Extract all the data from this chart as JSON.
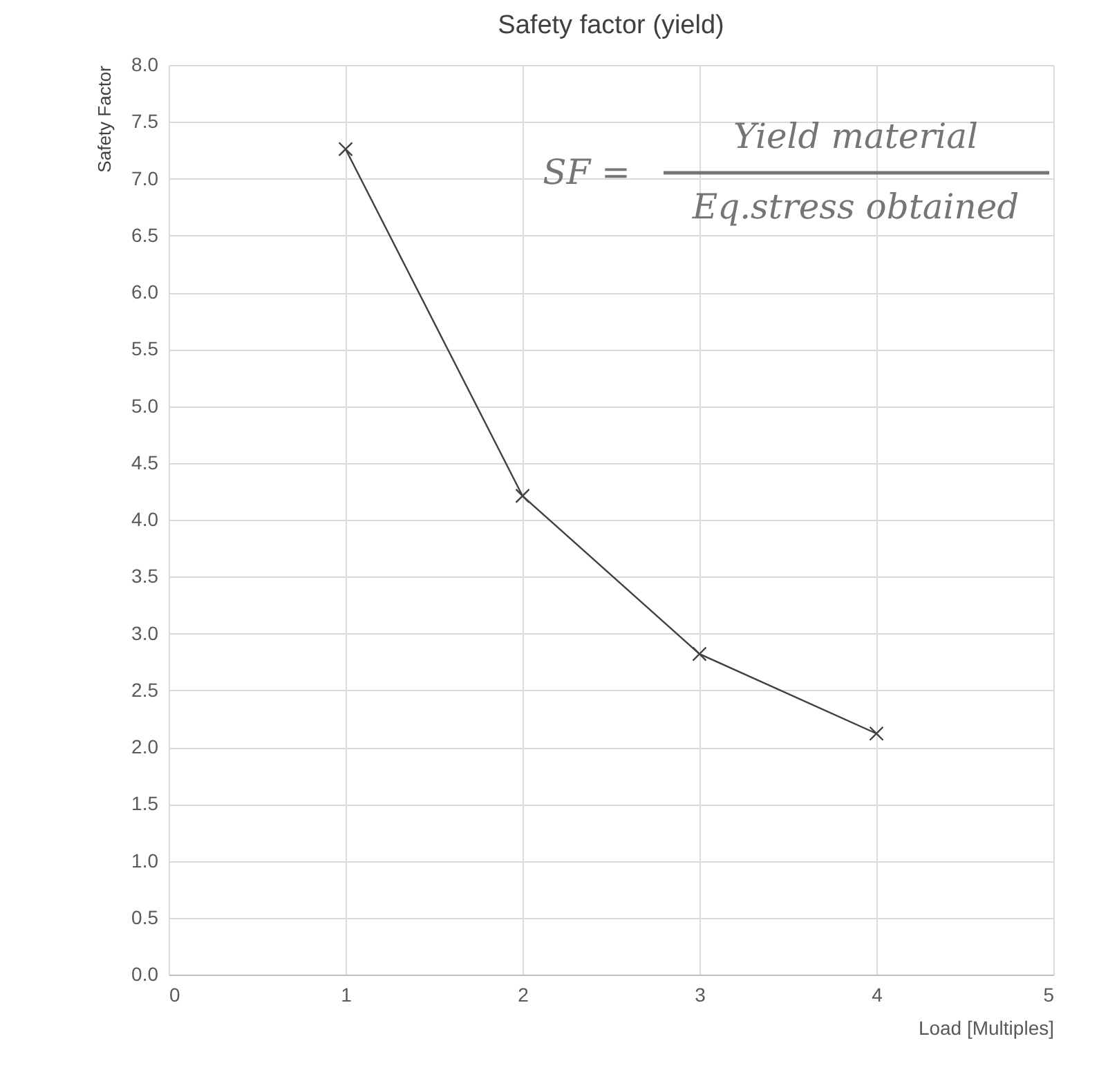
{
  "chart_data": {
    "type": "line",
    "title": "Safety factor (yield)",
    "xlabel": "Load [Multiples]",
    "ylabel": "Safety Factor",
    "x": [
      1,
      2,
      3,
      4
    ],
    "series": [
      {
        "color": "#404040",
        "values": [
          7.26,
          4.21,
          2.82,
          2.12
        ]
      }
    ],
    "xlim": [
      0,
      5
    ],
    "xticks": [
      0,
      1,
      2,
      3,
      4,
      5
    ],
    "ylim": [
      0,
      8
    ],
    "yticks": [
      {
        "value": 0,
        "label": "0.0"
      },
      {
        "value": 0.5,
        "label": "0.5"
      },
      {
        "value": 1,
        "label": "1.0"
      },
      {
        "value": 1.5,
        "label": "1.5"
      },
      {
        "value": 2,
        "label": "2.0"
      },
      {
        "value": 2.5,
        "label": "2.5"
      },
      {
        "value": 3,
        "label": "3.0"
      },
      {
        "value": 3.5,
        "label": "3.5"
      },
      {
        "value": 4,
        "label": "4.0"
      },
      {
        "value": 4.5,
        "label": "4.5"
      },
      {
        "value": 5,
        "label": "5.0"
      },
      {
        "value": 5.5,
        "label": "5.5"
      },
      {
        "value": 6,
        "label": "6.0"
      },
      {
        "value": 6.5,
        "label": "6.5"
      },
      {
        "value": 7,
        "label": "7.0"
      },
      {
        "value": 7.5,
        "label": "7.5"
      },
      {
        "value": 8,
        "label": "8.0"
      }
    ],
    "annotations": [
      "SF =",
      "Yield material",
      "Eq.stress obtained"
    ],
    "grid": true,
    "marker": "cross",
    "line_style": "solid"
  }
}
